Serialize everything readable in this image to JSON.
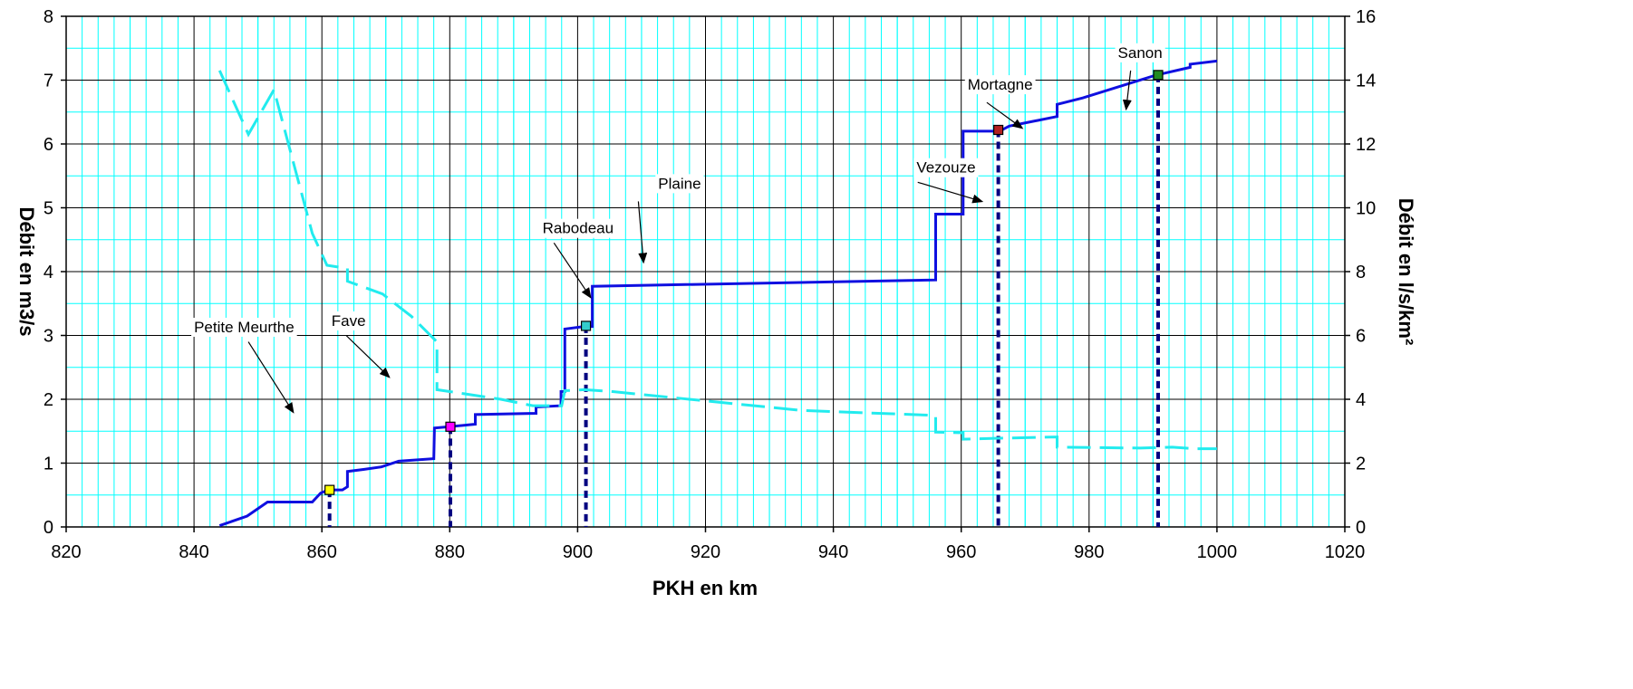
{
  "chart_data": {
    "type": "line",
    "xlabel": "PKH en km",
    "ylabel": "Débit en m3/s",
    "y2label": "Débit en l/s/km²",
    "xlim": [
      820,
      1020
    ],
    "ylim": [
      0,
      8
    ],
    "y2lim": [
      0,
      16
    ],
    "x_ticks": [
      "820",
      "840",
      "860",
      "880",
      "900",
      "920",
      "940",
      "960",
      "980",
      "1000",
      "1020"
    ],
    "y_ticks": [
      "0",
      "1",
      "2",
      "3",
      "4",
      "5",
      "6",
      "7",
      "8"
    ],
    "y2_ticks": [
      "0",
      "2",
      "4",
      "6",
      "8",
      "10",
      "12",
      "14",
      "16"
    ],
    "grid": true,
    "series": [
      {
        "axis": "left",
        "color": "#1010e0",
        "style": "solid",
        "points": [
          [
            844,
            0.02
          ],
          [
            848.3,
            0.17
          ],
          [
            851.5,
            0.39
          ],
          [
            858.5,
            0.39
          ],
          [
            859.8,
            0.53
          ],
          [
            861,
            0.58
          ],
          [
            863.2,
            0.58
          ],
          [
            864,
            0.63
          ],
          [
            864,
            0.87
          ],
          [
            866.5,
            0.9
          ],
          [
            869.3,
            0.94
          ],
          [
            870.8,
            0.99
          ],
          [
            872,
            1.03
          ],
          [
            877.5,
            1.07
          ],
          [
            877.6,
            1.55
          ],
          [
            880,
            1.57
          ],
          [
            884,
            1.61
          ],
          [
            884,
            1.76
          ],
          [
            893.5,
            1.78
          ],
          [
            893.5,
            1.88
          ],
          [
            897.4,
            1.9
          ],
          [
            897.4,
            2.12
          ],
          [
            898,
            2.12
          ],
          [
            898,
            3.1
          ],
          [
            901,
            3.14
          ],
          [
            902.3,
            3.14
          ],
          [
            902.3,
            3.77
          ],
          [
            956,
            3.87
          ],
          [
            956,
            4.9
          ],
          [
            960.3,
            4.9
          ],
          [
            960.3,
            6.2
          ],
          [
            966,
            6.2
          ],
          [
            967.5,
            6.28
          ],
          [
            975,
            6.43
          ],
          [
            975,
            6.62
          ],
          [
            979,
            6.72
          ],
          [
            990.5,
            7.08
          ],
          [
            995.8,
            7.2
          ],
          [
            995.8,
            7.25
          ],
          [
            1000,
            7.3
          ]
        ]
      },
      {
        "axis": "right",
        "color": "#22ebee",
        "style": "dashed",
        "points": [
          [
            844,
            14.3
          ],
          [
            848.5,
            12.3
          ],
          [
            852.5,
            13.7
          ],
          [
            858.5,
            9.2
          ],
          [
            860.8,
            8.2
          ],
          [
            864,
            8.1
          ],
          [
            864,
            7.7
          ],
          [
            869.5,
            7.3
          ],
          [
            874,
            6.6
          ],
          [
            878,
            5.8
          ],
          [
            878,
            4.3
          ],
          [
            888,
            4.0
          ],
          [
            893,
            3.8
          ],
          [
            897.5,
            3.8
          ],
          [
            898,
            4.27
          ],
          [
            901,
            4.3
          ],
          [
            905,
            4.25
          ],
          [
            935,
            3.65
          ],
          [
            955,
            3.5
          ],
          [
            956,
            3.47
          ],
          [
            956,
            2.97
          ],
          [
            960.3,
            2.95
          ],
          [
            960.3,
            2.75
          ],
          [
            966,
            2.78
          ],
          [
            975,
            2.82
          ],
          [
            975,
            2.5
          ],
          [
            988,
            2.47
          ],
          [
            993,
            2.5
          ],
          [
            996.5,
            2.45
          ],
          [
            1000,
            2.45
          ]
        ]
      }
    ],
    "markers": [
      {
        "x": 861.2,
        "y": 0.58,
        "color": "#ffff00"
      },
      {
        "x": 880.1,
        "y": 1.57,
        "color": "#ff00ff"
      },
      {
        "x": 901.3,
        "y": 3.15,
        "color": "#33cccc"
      },
      {
        "x": 965.8,
        "y": 6.22,
        "color": "#b22222"
      },
      {
        "x": 990.8,
        "y": 7.08,
        "color": "#228b22"
      }
    ],
    "drop_lines": [
      {
        "x": 861.2,
        "y": 0.58
      },
      {
        "x": 880.1,
        "y": 1.57
      },
      {
        "x": 901.3,
        "y": 3.15
      },
      {
        "x": 965.8,
        "y": 6.22
      },
      {
        "x": 990.8,
        "y": 7.08
      }
    ],
    "annotations": [
      {
        "text": "Petite Meurthe",
        "label_x": 840,
        "label_y": 3.05,
        "arrow_from": [
          848.5,
          2.9
        ],
        "arrow_to": [
          855.5,
          1.8
        ]
      },
      {
        "text": "Fave",
        "label_x": 861.5,
        "label_y": 3.15,
        "arrow_from": [
          863.8,
          3.0
        ],
        "arrow_to": [
          870.5,
          2.35
        ]
      },
      {
        "text": "Rabodeau",
        "label_x": 894.5,
        "label_y": 4.6,
        "arrow_from": [
          896.3,
          4.45
        ],
        "arrow_to": [
          902,
          3.6
        ]
      },
      {
        "text": "Plaine",
        "label_x": 912.6,
        "label_y": 5.3,
        "arrow_from": [
          909.5,
          5.1
        ],
        "arrow_to": [
          910.3,
          4.15
        ]
      },
      {
        "text": "Vezouze",
        "label_x": 953,
        "label_y": 5.55,
        "arrow_from": [
          953.2,
          5.4
        ],
        "arrow_to": [
          963.2,
          5.1
        ]
      },
      {
        "text": "Mortagne",
        "label_x": 961,
        "label_y": 6.85,
        "arrow_from": [
          964,
          6.65
        ],
        "arrow_to": [
          969.5,
          6.25
        ]
      },
      {
        "text": "Sanon",
        "label_x": 984.5,
        "label_y": 7.35,
        "arrow_from": [
          986.5,
          7.15
        ],
        "arrow_to": [
          985.8,
          6.55
        ]
      }
    ]
  }
}
